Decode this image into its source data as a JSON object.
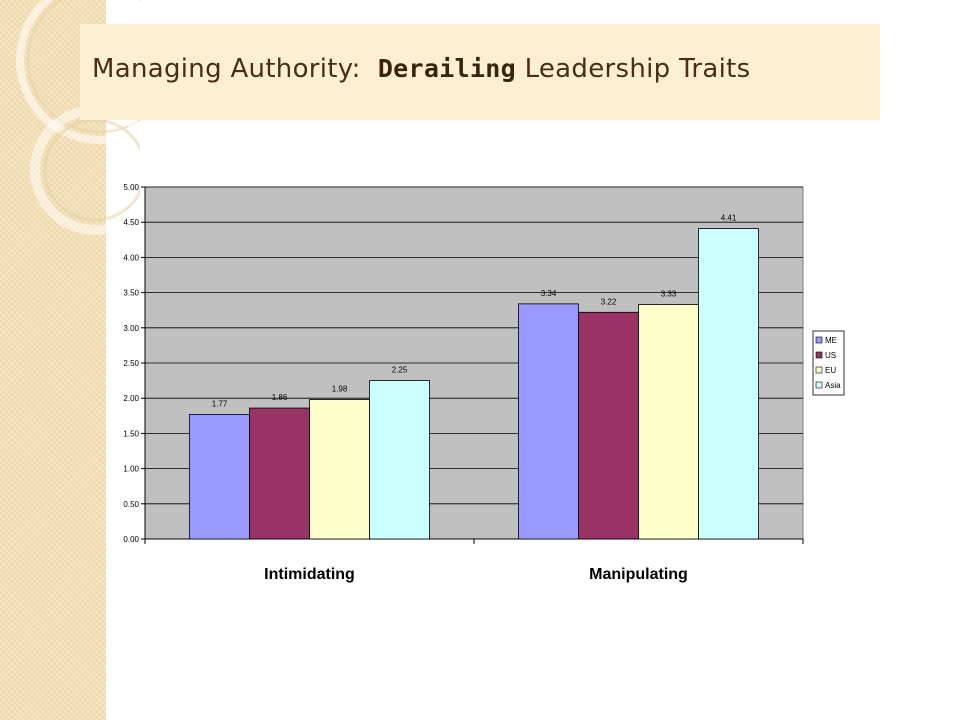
{
  "slide": {
    "title_part1": "Managing Authority:",
    "title_emphasis": "Derailing",
    "title_part2": "Leadership Traits"
  },
  "colors": {
    "side_strip": "#f3dfb6",
    "title_box": "#fdf0d2",
    "title_text": "#4a2d14",
    "plot_area": "#c0c0c0"
  },
  "chart_data": {
    "type": "bar",
    "categories": [
      "Intimidating",
      "Manipulating"
    ],
    "series": [
      {
        "name": "ME",
        "values": [
          1.77,
          3.34
        ],
        "color": "#9999ff"
      },
      {
        "name": "US",
        "values": [
          1.86,
          3.22
        ],
        "color": "#993366"
      },
      {
        "name": "EU",
        "values": [
          1.98,
          3.33
        ],
        "color": "#ffffcc"
      },
      {
        "name": "Asia",
        "values": [
          2.25,
          4.41
        ],
        "color": "#ccffff"
      }
    ],
    "ylim": [
      0,
      5
    ],
    "yticks": [
      "0.00",
      "0.50",
      "1.00",
      "1.50",
      "2.00",
      "2.50",
      "3.00",
      "3.50",
      "4.00",
      "4.50",
      "5.00"
    ],
    "grid": true,
    "legend": "right",
    "data_labels": true
  }
}
